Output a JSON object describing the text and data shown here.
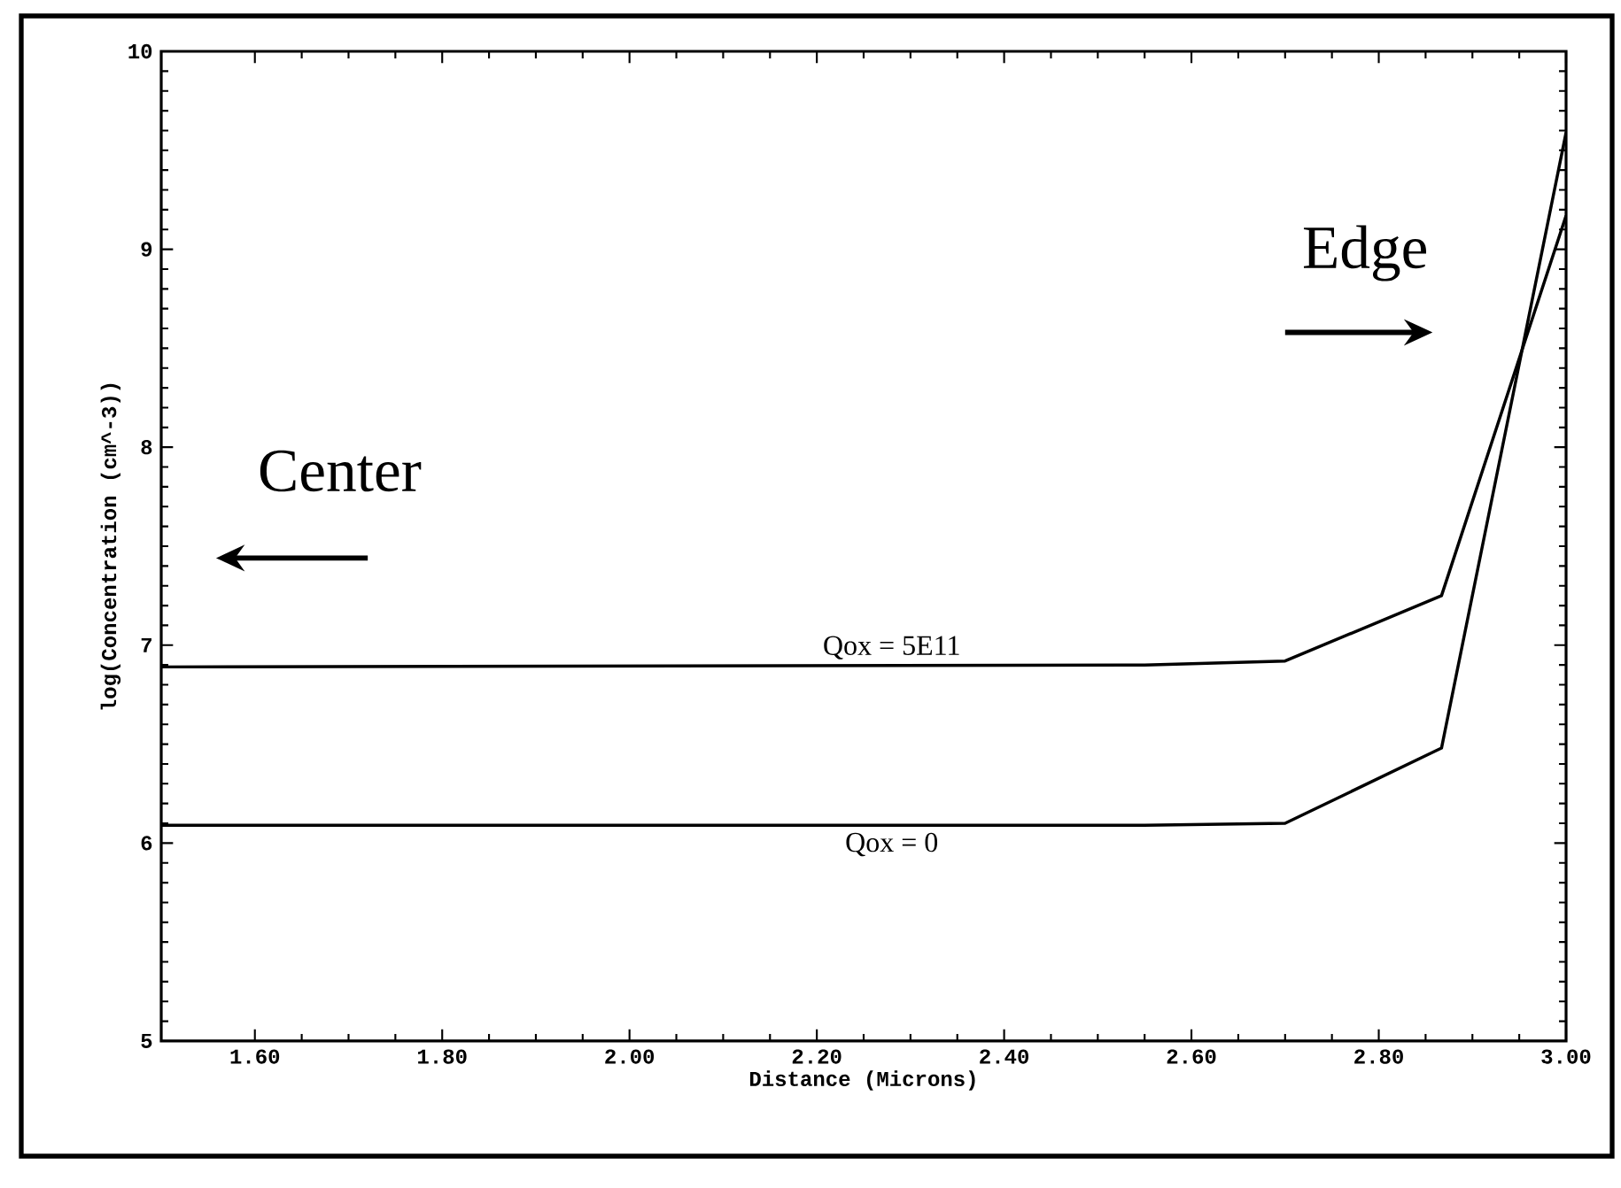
{
  "chart_data": {
    "type": "line",
    "xlabel": "Distance (Microns)",
    "ylabel": "log(Concentration (cm^-3))",
    "annotations": [
      "Center",
      "Edge"
    ],
    "xlim": [
      1.5,
      3.0
    ],
    "xticks": [
      {
        "value": 1.6,
        "label": "1.60"
      },
      {
        "value": 1.8,
        "label": "1.80"
      },
      {
        "value": 2.0,
        "label": "2.00"
      },
      {
        "value": 2.2,
        "label": "2.20"
      },
      {
        "value": 2.4,
        "label": "2.40"
      },
      {
        "value": 2.6,
        "label": "2.60"
      },
      {
        "value": 2.8,
        "label": "2.80"
      },
      {
        "value": 3.0,
        "label": "3.00"
      }
    ],
    "ylim": [
      5,
      10
    ],
    "yticks": [
      5,
      6,
      7,
      8,
      9,
      10
    ],
    "series": [
      {
        "name": "Qox = 5E11",
        "color": "#000000",
        "x": [
          1.5,
          2.55,
          2.7,
          2.867,
          3.0
        ],
        "values": [
          6.89,
          6.9,
          6.92,
          7.25,
          9.17
        ]
      },
      {
        "name": "Qox = 0",
        "color": "#000000",
        "x": [
          1.5,
          2.55,
          2.7,
          2.867,
          3.0
        ],
        "values": [
          6.09,
          6.09,
          6.1,
          6.48,
          9.59
        ]
      }
    ]
  }
}
